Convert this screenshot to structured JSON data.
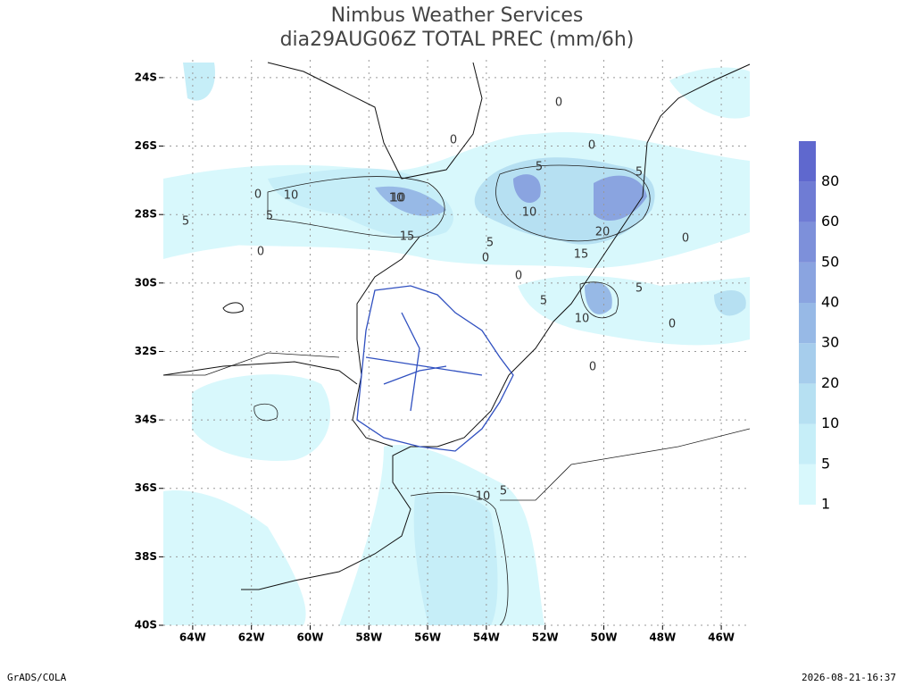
{
  "header": {
    "title": "Nimbus Weather Services",
    "subtitle": "dia29AUG06Z TOTAL PREC (mm/6h)"
  },
  "map": {
    "lon_range": [
      -65,
      -45.03
    ],
    "lat_range": [
      -40,
      -23.48
    ],
    "lat_ticks": [
      {
        "value": -24,
        "label": "24S"
      },
      {
        "value": -26,
        "label": "26S"
      },
      {
        "value": -28,
        "label": "28S"
      },
      {
        "value": -30,
        "label": "30S"
      },
      {
        "value": -32,
        "label": "32S"
      },
      {
        "value": -34,
        "label": "34S"
      },
      {
        "value": -36,
        "label": "36S"
      },
      {
        "value": -38,
        "label": "38S"
      },
      {
        "value": -40,
        "label": "40S"
      }
    ],
    "lon_ticks": [
      {
        "value": -64,
        "label": "64W"
      },
      {
        "value": -62,
        "label": "62W"
      },
      {
        "value": -60,
        "label": "60W"
      },
      {
        "value": -58,
        "label": "58W"
      },
      {
        "value": -56,
        "label": "56W"
      },
      {
        "value": -54,
        "label": "54W"
      },
      {
        "value": -52,
        "label": "52W"
      },
      {
        "value": -50,
        "label": "50W"
      },
      {
        "value": -48,
        "label": "48W"
      },
      {
        "value": -46,
        "label": "46W"
      }
    ],
    "contour_labels": [
      0,
      10,
      5,
      5,
      10,
      15,
      0,
      5,
      0,
      10,
      5,
      0,
      5,
      10,
      20,
      15,
      0,
      5,
      10,
      0,
      5,
      0,
      0,
      0,
      10,
      5,
      0
    ]
  },
  "colorbar": {
    "levels": [
      1,
      5,
      10,
      20,
      30,
      40,
      50,
      60,
      80
    ],
    "colors": [
      "#d8f8fc",
      "#c6eef8",
      "#b6e0f2",
      "#a6cdec",
      "#97b9e6",
      "#8aa4e0",
      "#7d90da",
      "#6f7cd4",
      "#5f68ce"
    ]
  },
  "footer": {
    "left": "GrADS/COLA",
    "right": "2026-08-21-16:37"
  }
}
